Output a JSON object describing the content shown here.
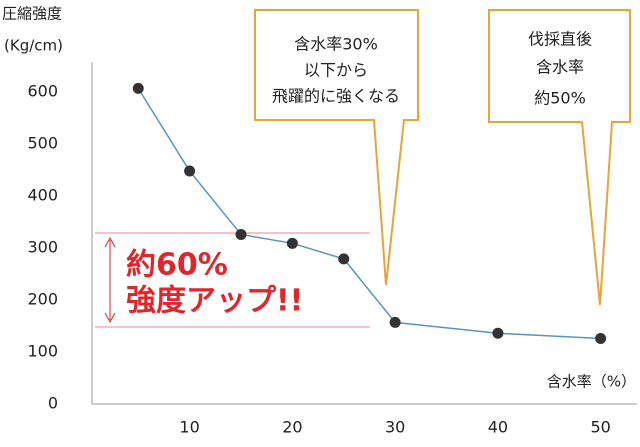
{
  "chart_data": {
    "type": "line",
    "ylabel": [
      "圧縮強度",
      "(Kg/cm)"
    ],
    "xlabel": "含水率（%）",
    "x": [
      5,
      10,
      15,
      20,
      25,
      30,
      40,
      50
    ],
    "values": [
      607,
      448,
      326,
      309,
      279,
      157,
      136,
      126
    ],
    "color": "#5b93c0",
    "marker_color": "#333333",
    "xlim": [
      0.5,
      53.5
    ],
    "ylim": [
      0,
      660
    ],
    "xticks": [
      10,
      20,
      30,
      40,
      50
    ],
    "yticks": [
      0,
      100,
      200,
      300,
      400,
      500,
      600
    ],
    "callouts": [
      [
        "含水率30%",
        "以下から",
        "飛躍的に強くなる"
      ],
      [
        "伐採直後",
        "含水率",
        "約50%"
      ]
    ],
    "highlight": [
      "約60%",
      "強度アップ!!"
    ]
  }
}
